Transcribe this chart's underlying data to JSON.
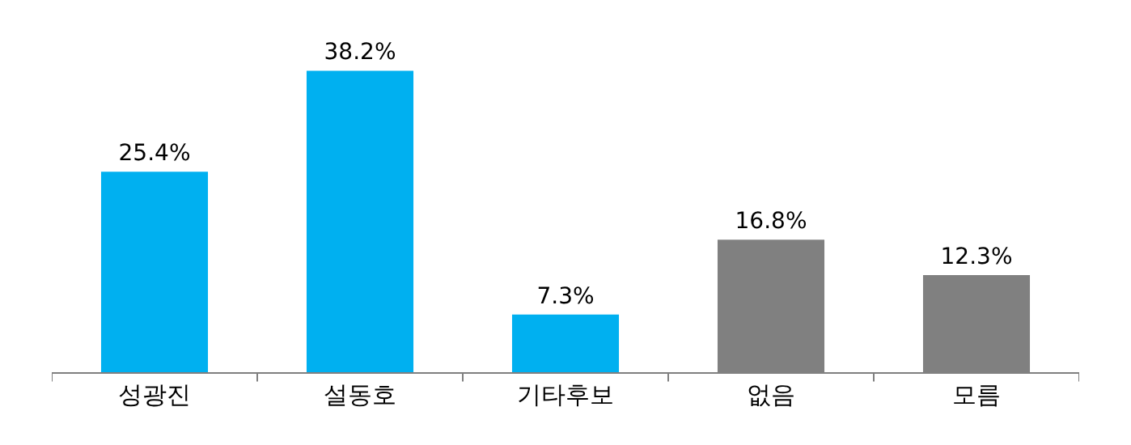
{
  "chart_data": {
    "type": "bar",
    "categories": [
      "성광진",
      "설동호",
      "기타후보",
      "없음",
      "모름"
    ],
    "values": [
      25.4,
      38.2,
      7.3,
      16.8,
      12.3
    ],
    "value_labels": [
      "25.4%",
      "38.2%",
      "7.3%",
      "16.8%",
      "12.3%"
    ],
    "colors": [
      "#00b0f0",
      "#00b0f0",
      "#00b0f0",
      "#808080",
      "#808080"
    ],
    "legend": false
  }
}
